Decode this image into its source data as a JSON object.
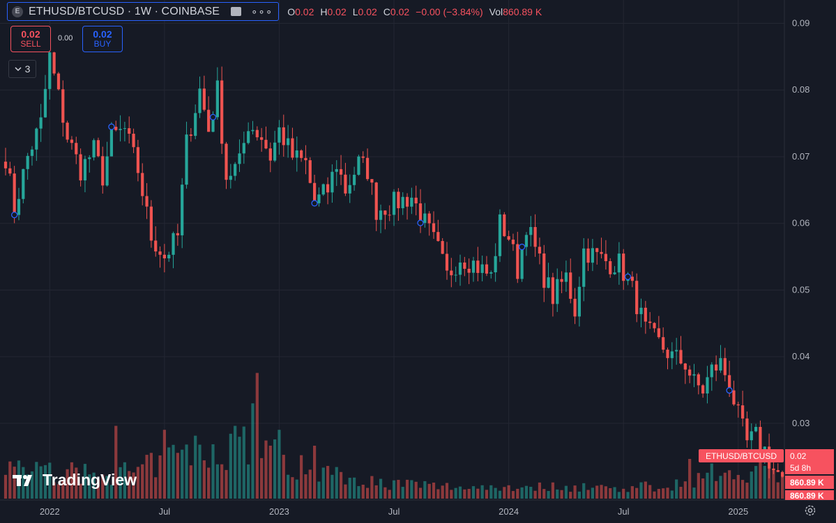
{
  "header": {
    "symbol_logo": "E",
    "symbol_title": "ETHUSD/BTCUSD · 1W · COINBASE",
    "more_icon": "∘∘∘",
    "ohlc": [
      {
        "k": "O",
        "v": "0.02"
      },
      {
        "k": "H",
        "v": "0.02"
      },
      {
        "k": "L",
        "v": "0.02"
      },
      {
        "k": "C",
        "v": "0.02"
      },
      {
        "k": "",
        "v": "−0.00 (−3.84%)"
      },
      {
        "k": "Vol",
        "v": "860.89 K"
      }
    ]
  },
  "trade": {
    "sell_price": "0.02",
    "sell_label": "SELL",
    "buy_price": "0.02",
    "buy_label": "BUY",
    "spread": "0.00"
  },
  "indicators_count": "3",
  "watermark": "TradingView",
  "colors": {
    "up": "#26a69a",
    "down": "#ef5350",
    "bg": "#161a25",
    "grid": "#242733",
    "accent": "#2962ff"
  },
  "chart_data": {
    "type": "candlestick",
    "symbol": "ETHUSD/BTCUSD",
    "interval": "1W",
    "exchange": "COINBASE",
    "ylim": [
      0.0185,
      0.0935
    ],
    "y_ticks": [
      "0.09",
      "0.08",
      "0.07",
      "0.06",
      "0.05",
      "0.04",
      "0.03"
    ],
    "x_ticks": [
      {
        "label": "2022",
        "week": 10
      },
      {
        "label": "Jul",
        "week": 36
      },
      {
        "label": "2023",
        "week": 62
      },
      {
        "label": "Jul",
        "week": 88
      },
      {
        "label": "2024",
        "week": 114
      },
      {
        "label": "Jul",
        "week": 140
      },
      {
        "label": "2025",
        "week": 166
      }
    ],
    "price_anchors": [
      [
        0,
        0.07
      ],
      [
        2,
        0.062
      ],
      [
        5,
        0.07
      ],
      [
        8,
        0.075
      ],
      [
        10,
        0.085
      ],
      [
        12,
        0.079
      ],
      [
        14,
        0.073
      ],
      [
        17,
        0.068
      ],
      [
        20,
        0.071
      ],
      [
        22,
        0.067
      ],
      [
        24,
        0.073
      ],
      [
        27,
        0.074
      ],
      [
        30,
        0.068
      ],
      [
        33,
        0.058
      ],
      [
        36,
        0.055
      ],
      [
        39,
        0.058
      ],
      [
        41,
        0.072
      ],
      [
        44,
        0.08
      ],
      [
        46,
        0.074
      ],
      [
        48,
        0.08
      ],
      [
        50,
        0.067
      ],
      [
        53,
        0.069
      ],
      [
        55,
        0.075
      ],
      [
        58,
        0.073
      ],
      [
        60,
        0.07
      ],
      [
        62,
        0.074
      ],
      [
        65,
        0.07
      ],
      [
        68,
        0.069
      ],
      [
        70,
        0.063
      ],
      [
        73,
        0.065
      ],
      [
        75,
        0.069
      ],
      [
        77,
        0.065
      ],
      [
        80,
        0.069
      ],
      [
        82,
        0.068
      ],
      [
        84,
        0.062
      ],
      [
        88,
        0.063
      ],
      [
        92,
        0.064
      ],
      [
        95,
        0.06
      ],
      [
        98,
        0.056
      ],
      [
        100,
        0.052
      ],
      [
        103,
        0.055
      ],
      [
        106,
        0.054
      ],
      [
        110,
        0.052
      ],
      [
        112,
        0.06
      ],
      [
        114,
        0.058
      ],
      [
        116,
        0.053
      ],
      [
        118,
        0.06
      ],
      [
        120,
        0.056
      ],
      [
        122,
        0.052
      ],
      [
        124,
        0.049
      ],
      [
        127,
        0.052
      ],
      [
        129,
        0.047
      ],
      [
        131,
        0.056
      ],
      [
        134,
        0.055
      ],
      [
        137,
        0.054
      ],
      [
        139,
        0.054
      ],
      [
        142,
        0.05
      ],
      [
        145,
        0.044
      ],
      [
        148,
        0.042
      ],
      [
        151,
        0.04
      ],
      [
        154,
        0.039
      ],
      [
        156,
        0.036
      ],
      [
        158,
        0.035
      ],
      [
        160,
        0.038
      ],
      [
        162,
        0.039
      ],
      [
        164,
        0.036
      ],
      [
        166,
        0.031
      ],
      [
        168,
        0.027
      ],
      [
        170,
        0.028
      ],
      [
        172,
        0.026
      ],
      [
        174,
        0.023
      ],
      [
        176,
        0.022
      ]
    ],
    "volume_max": 100,
    "volume_profile": [
      [
        0,
        25
      ],
      [
        10,
        20
      ],
      [
        20,
        18
      ],
      [
        30,
        20
      ],
      [
        40,
        35
      ],
      [
        48,
        35
      ],
      [
        54,
        45
      ],
      [
        58,
        40
      ],
      [
        64,
        25
      ],
      [
        74,
        20
      ],
      [
        84,
        12
      ],
      [
        100,
        9
      ],
      [
        114,
        9
      ],
      [
        130,
        9
      ],
      [
        140,
        8
      ],
      [
        150,
        10
      ],
      [
        156,
        15
      ],
      [
        162,
        20
      ],
      [
        170,
        22
      ],
      [
        176,
        18
      ]
    ],
    "volume_spikes": [
      [
        25,
        55
      ],
      [
        36,
        52
      ],
      [
        52,
        55
      ],
      [
        56,
        72
      ],
      [
        57,
        95
      ],
      [
        62,
        52
      ],
      [
        70,
        40
      ],
      [
        155,
        30
      ]
    ],
    "events_weeks": [
      2,
      24,
      47,
      70,
      94,
      117,
      141,
      164
    ],
    "price_label": "ETHUSD/BTCUSD",
    "last_price": "0.02",
    "countdown": "5d 8h",
    "volume_label_1": "860.89 K",
    "volume_label_2": "860.89 K"
  }
}
